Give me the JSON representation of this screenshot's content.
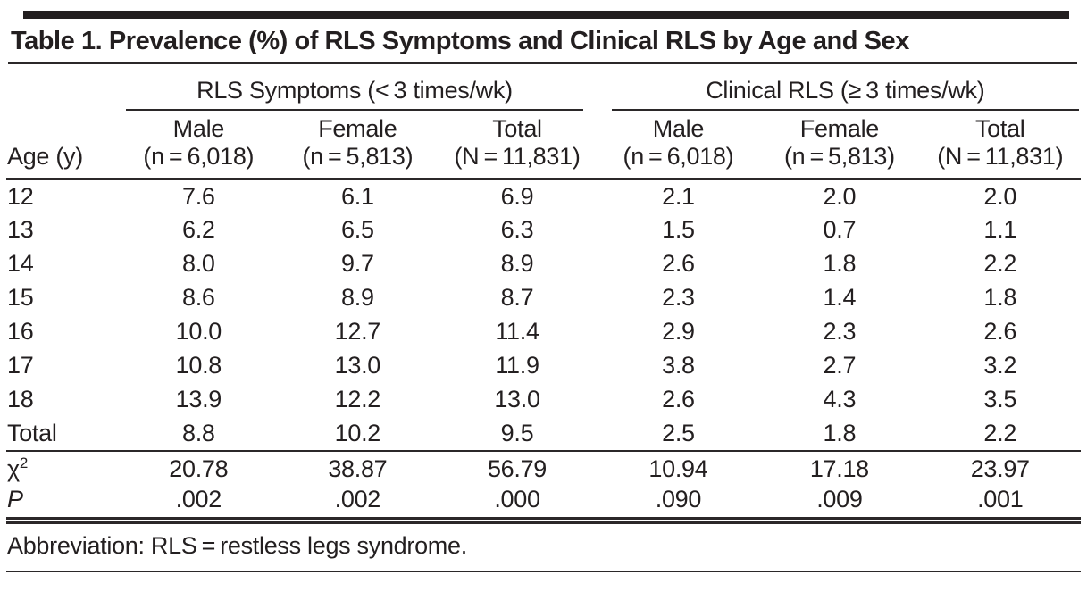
{
  "colors": {
    "text": "#231f20",
    "rule": "#2b2829"
  },
  "table": {
    "title": "Table 1. Prevalence (%) of RLS Symptoms and Clinical RLS by Age and Sex",
    "row_header_label": "Age (y)",
    "groups": [
      {
        "label": "RLS Symptoms (< 3 times/wk)"
      },
      {
        "label": "Clinical RLS (≥ 3 times/wk)"
      }
    ],
    "columns": [
      {
        "top": "Male",
        "bottom": "(n = 6,018)"
      },
      {
        "top": "Female",
        "bottom": "(n = 5,813)"
      },
      {
        "top": "Total",
        "bottom": "(N = 11,831)"
      },
      {
        "top": "Male",
        "bottom": "(n = 6,018)"
      },
      {
        "top": "Female",
        "bottom": "(n = 5,813)"
      },
      {
        "top": "Total",
        "bottom": "(N = 11,831)"
      }
    ],
    "rows": [
      {
        "label": "12",
        "values": [
          "7.6",
          "6.1",
          "6.9",
          "2.1",
          "2.0",
          "2.0"
        ]
      },
      {
        "label": "13",
        "values": [
          "6.2",
          "6.5",
          "6.3",
          "1.5",
          "0.7",
          "1.1"
        ]
      },
      {
        "label": "14",
        "values": [
          "8.0",
          "9.7",
          "8.9",
          "2.6",
          "1.8",
          "2.2"
        ]
      },
      {
        "label": "15",
        "values": [
          "8.6",
          "8.9",
          "8.7",
          "2.3",
          "1.4",
          "1.8"
        ]
      },
      {
        "label": "16",
        "values": [
          "10.0",
          "12.7",
          "11.4",
          "2.9",
          "2.3",
          "2.6"
        ]
      },
      {
        "label": "17",
        "values": [
          "10.8",
          "13.0",
          "11.9",
          "3.8",
          "2.7",
          "3.2"
        ]
      },
      {
        "label": "18",
        "values": [
          "13.9",
          "12.2",
          "13.0",
          "2.6",
          "4.3",
          "3.5"
        ]
      },
      {
        "label": "Total",
        "values": [
          "8.8",
          "10.2",
          "9.5",
          "2.5",
          "1.8",
          "2.2"
        ]
      }
    ],
    "stats": [
      {
        "label": "χ",
        "sup": "2",
        "italic": false,
        "values": [
          "20.78",
          "38.87",
          "56.79",
          "10.94",
          "17.18",
          "23.97"
        ]
      },
      {
        "label": "P",
        "sup": "",
        "italic": true,
        "values": [
          ".002",
          ".002",
          ".000",
          ".090",
          ".009",
          ".001"
        ]
      }
    ],
    "footnote": "Abbreviation: RLS = restless legs syndrome."
  }
}
